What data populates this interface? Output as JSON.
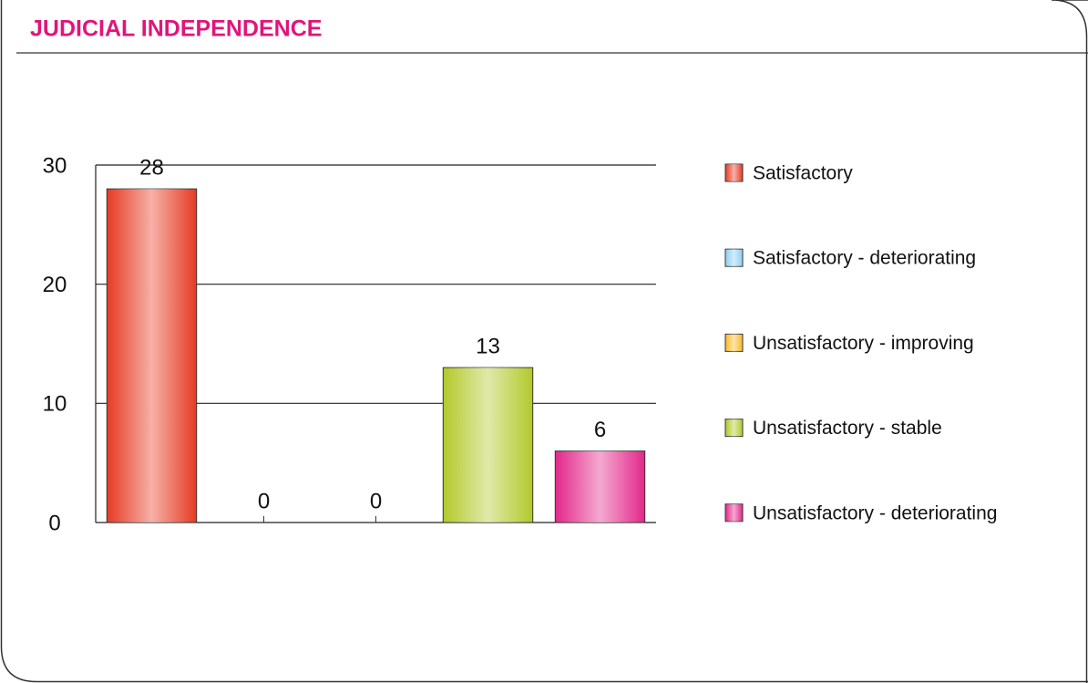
{
  "chart_data": {
    "type": "bar",
    "title": "JUDICIAL INDEPENDENCE",
    "categories": [
      "Satisfactory",
      "Satisfactory - deteriorating",
      "Unsatisfactory - improving",
      "Unsatisfactory - stable",
      "Unsatisfactory - deteriorating"
    ],
    "values": [
      28,
      0,
      0,
      13,
      6
    ],
    "colors": [
      "#e63b24",
      "#8fd0f4",
      "#f9b92a",
      "#b2c92a",
      "#e3288a"
    ],
    "ylim": [
      0,
      30
    ],
    "yticks": [
      0,
      10,
      20,
      30
    ],
    "grid": true,
    "legend": "right"
  }
}
